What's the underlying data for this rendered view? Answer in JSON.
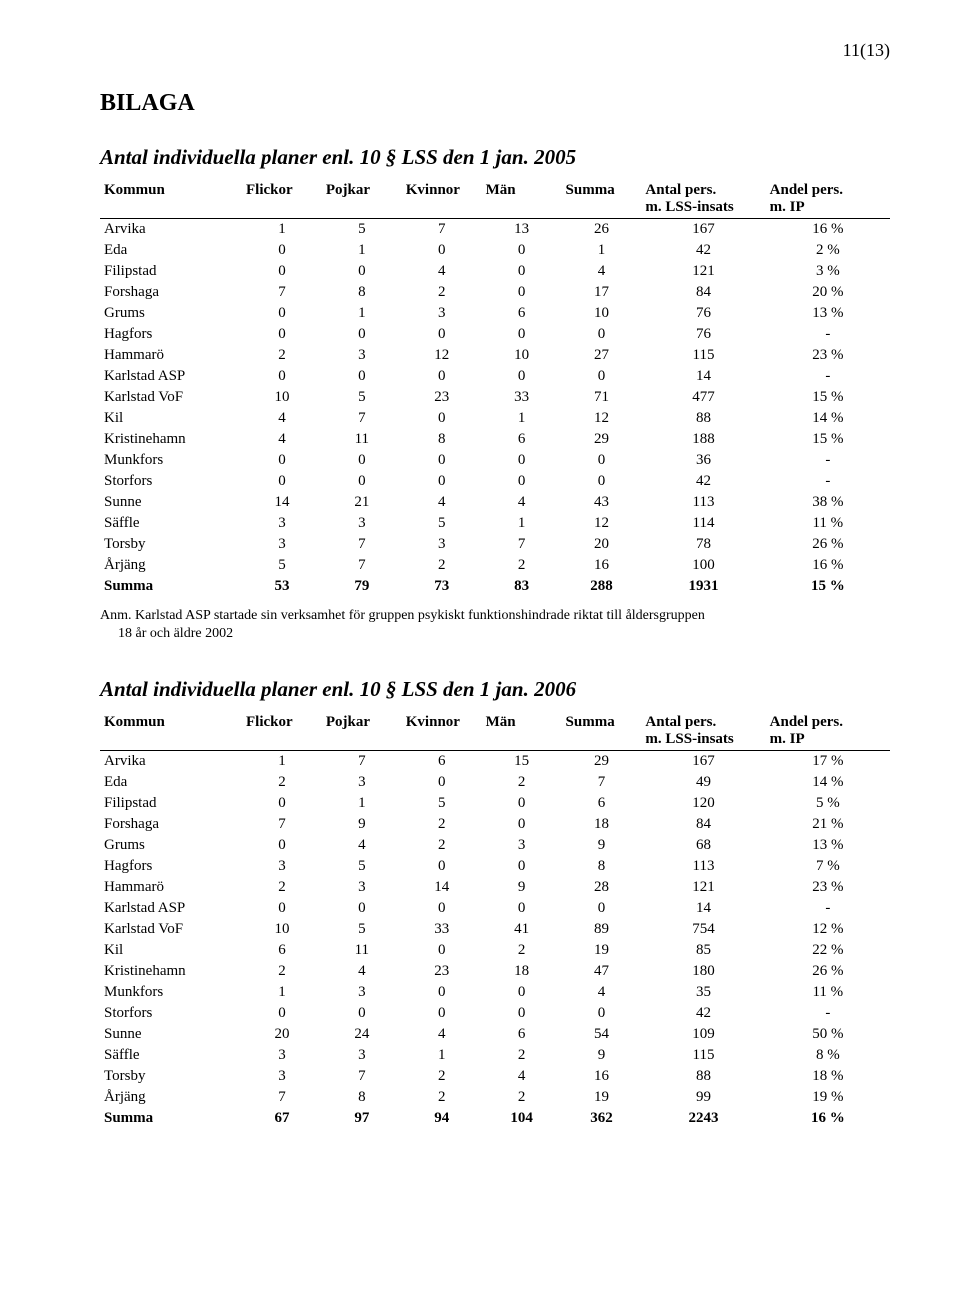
{
  "page_number": "11(13)",
  "bilaga_label": "BILAGA",
  "table1": {
    "title": "Antal individuella planer enl. 10 § LSS  den 1 jan. 2005",
    "columns": [
      "Kommun",
      "Flickor",
      "Pojkar",
      "Kvinnor",
      "Män",
      "Summa",
      "Antal pers. m. LSS-insats",
      "Andel pers. m. IP"
    ],
    "col_line1": [
      "Kommun",
      "Flickor",
      "Pojkar",
      "Kvinnor",
      "Män",
      "Summa",
      "Antal pers.",
      "Andel pers."
    ],
    "col_line2": [
      "",
      "",
      "",
      "",
      "",
      "",
      "m. LSS-insats",
      "m. IP"
    ],
    "rows": [
      [
        "Arvika",
        "1",
        "5",
        "7",
        "13",
        "26",
        "167",
        "16 %"
      ],
      [
        "Eda",
        "0",
        "1",
        "0",
        "0",
        "1",
        "42",
        "2 %"
      ],
      [
        "Filipstad",
        "0",
        "0",
        "4",
        "0",
        "4",
        "121",
        "3 %"
      ],
      [
        "Forshaga",
        "7",
        "8",
        "2",
        "0",
        "17",
        "84",
        "20 %"
      ],
      [
        "Grums",
        "0",
        "1",
        "3",
        "6",
        "10",
        "76",
        "13 %"
      ],
      [
        "Hagfors",
        "0",
        "0",
        "0",
        "0",
        "0",
        "76",
        "-"
      ],
      [
        "Hammarö",
        "2",
        "3",
        "12",
        "10",
        "27",
        "115",
        "23 %"
      ],
      [
        "Karlstad ASP",
        "0",
        "0",
        "0",
        "0",
        "0",
        "14",
        "-"
      ],
      [
        "Karlstad VoF",
        "10",
        "5",
        "23",
        "33",
        "71",
        "477",
        "15 %"
      ],
      [
        "Kil",
        "4",
        "7",
        "0",
        "1",
        "12",
        "88",
        "14 %"
      ],
      [
        "Kristinehamn",
        "4",
        "11",
        "8",
        "6",
        "29",
        "188",
        "15 %"
      ],
      [
        "Munkfors",
        "0",
        "0",
        "0",
        "0",
        "0",
        "36",
        "-"
      ],
      [
        "Storfors",
        "0",
        "0",
        "0",
        "0",
        "0",
        "42",
        "-"
      ],
      [
        "Sunne",
        "14",
        "21",
        "4",
        "4",
        "43",
        "113",
        "38 %"
      ],
      [
        "Säffle",
        "3",
        "3",
        "5",
        "1",
        "12",
        "114",
        "11 %"
      ],
      [
        "Torsby",
        "3",
        "7",
        "3",
        "7",
        "20",
        "78",
        "26 %"
      ],
      [
        "Årjäng",
        "5",
        "7",
        "2",
        "2",
        "16",
        "100",
        "16 %"
      ]
    ],
    "summa": [
      "Summa",
      "53",
      "79",
      "73",
      "83",
      "288",
      "1931",
      "15 %"
    ]
  },
  "footnote": {
    "line1": "Anm. Karlstad ASP startade sin verksamhet för gruppen psykiskt funktionshindrade riktat till åldersgruppen",
    "line2": "18 år och äldre 2002"
  },
  "table2": {
    "title": "Antal individuella planer enl. 10 § LSS den 1 jan. 2006",
    "col_line1": [
      "Kommun",
      "Flickor",
      "Pojkar",
      "Kvinnor",
      "Män",
      "Summa",
      "Antal pers.",
      "Andel pers."
    ],
    "col_line2": [
      "",
      "",
      "",
      "",
      "",
      "",
      "m. LSS-insats",
      "m. IP"
    ],
    "rows": [
      [
        "Arvika",
        "1",
        "7",
        "6",
        "15",
        "29",
        "167",
        "17 %"
      ],
      [
        "Eda",
        "2",
        "3",
        "0",
        "2",
        "7",
        "49",
        "14 %"
      ],
      [
        "Filipstad",
        "0",
        "1",
        "5",
        "0",
        "6",
        "120",
        "5 %"
      ],
      [
        "Forshaga",
        "7",
        "9",
        "2",
        "0",
        "18",
        "84",
        "21 %"
      ],
      [
        "Grums",
        "0",
        "4",
        "2",
        "3",
        "9",
        "68",
        "13 %"
      ],
      [
        "Hagfors",
        "3",
        "5",
        "0",
        "0",
        "8",
        "113",
        "7 %"
      ],
      [
        "Hammarö",
        "2",
        "3",
        "14",
        "9",
        "28",
        "121",
        "23 %"
      ],
      [
        "Karlstad ASP",
        "0",
        "0",
        "0",
        "0",
        "0",
        "14",
        "-"
      ],
      [
        "Karlstad VoF",
        "10",
        "5",
        "33",
        "41",
        "89",
        "754",
        "12 %"
      ],
      [
        "Kil",
        "6",
        "11",
        "0",
        "2",
        "19",
        "85",
        "22 %"
      ],
      [
        "Kristinehamn",
        "2",
        "4",
        "23",
        "18",
        "47",
        "180",
        "26 %"
      ],
      [
        "Munkfors",
        "1",
        "3",
        "0",
        "0",
        "4",
        "35",
        "11 %"
      ],
      [
        "Storfors",
        "0",
        "0",
        "0",
        "0",
        "0",
        "42",
        "-"
      ],
      [
        "Sunne",
        "20",
        "24",
        "4",
        "6",
        "54",
        "109",
        "50 %"
      ],
      [
        "Säffle",
        "3",
        "3",
        "1",
        "2",
        "9",
        "115",
        "8 %"
      ],
      [
        "Torsby",
        "3",
        "7",
        "2",
        "4",
        "16",
        "88",
        "18 %"
      ],
      [
        "Årjäng",
        "7",
        "8",
        "2",
        "2",
        "19",
        "99",
        "19 %"
      ]
    ],
    "summa": [
      "Summa",
      "67",
      "97",
      "94",
      "104",
      "362",
      "2243",
      "16 %"
    ]
  },
  "style": {
    "font_family": "Times New Roman",
    "title_fontsize_pt": 21,
    "header_border_color": "#000000",
    "text_color": "#000000",
    "background_color": "#ffffff",
    "body_fontsize_pt": 15
  }
}
